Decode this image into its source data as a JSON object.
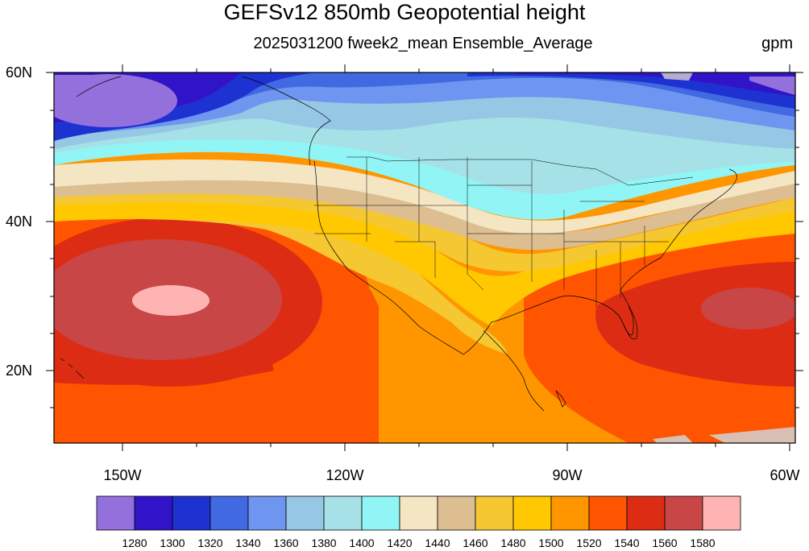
{
  "title": "GEFSv12 850mb Geopotential height",
  "subtitle": "2025031200 fweek2_mean Ensemble_Average",
  "units": "gpm",
  "map": {
    "lat_labels": [
      "60N",
      "40N",
      "20N"
    ],
    "lon_labels": [
      "150W",
      "120W",
      "90W",
      "60W"
    ],
    "lat_range": [
      10,
      60
    ],
    "lon_range": [
      -160,
      -60
    ]
  },
  "colorbar": {
    "levels": [
      "1280",
      "1300",
      "1320",
      "1340",
      "1360",
      "1380",
      "1400",
      "1420",
      "1440",
      "1460",
      "1480",
      "1500",
      "1520",
      "1540",
      "1560",
      "1580"
    ],
    "colors": [
      "#9370DB",
      "#3214C8",
      "#1E32D2",
      "#4169E1",
      "#6E96F0",
      "#96C8E6",
      "#A5E1E6",
      "#91F5F5",
      "#F5E6C3",
      "#DCBE91",
      "#F5C832",
      "#FFC800",
      "#FF9600",
      "#FF5500",
      "#DC2D14",
      "#C84646",
      "#FFB4B4"
    ]
  }
}
